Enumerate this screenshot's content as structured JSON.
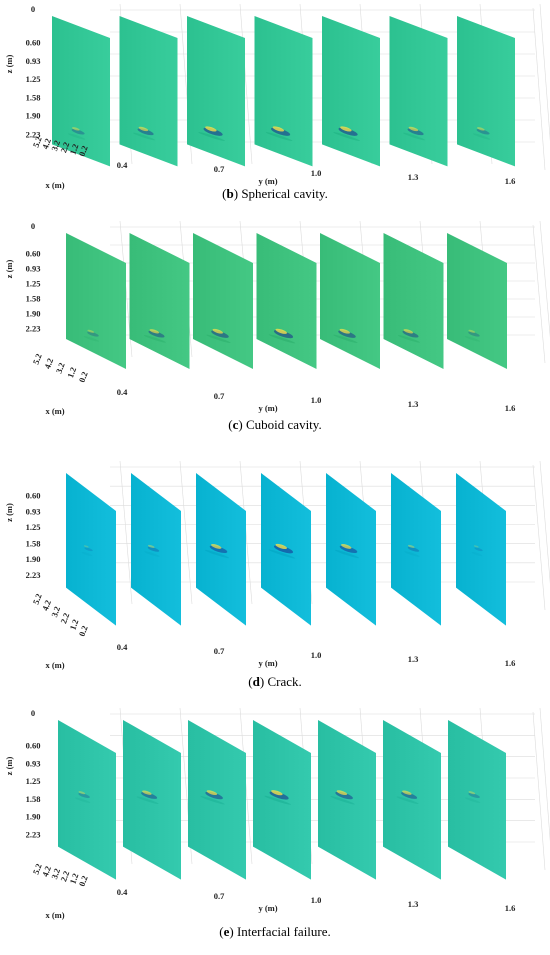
{
  "chart_data": [
    {
      "type": "heatmap",
      "caption_letter": "b",
      "caption_text": "Spherical cavity.",
      "xlabel": "x (m)",
      "ylabel": "y (m)",
      "zlabel": "z (m)",
      "x_ticks": [
        "5.2",
        "4.2",
        "3.2",
        "2.2",
        "1.2",
        "0.2"
      ],
      "y_ticks": [
        "0.4",
        "0.7",
        "1.0",
        "1.3",
        "1.6"
      ],
      "z_ticks": [
        "0",
        "0.60",
        "0.93",
        "1.25",
        "1.58",
        "1.90",
        "2.23"
      ],
      "slice_count": 7,
      "background_color": "#32c796",
      "anomaly_depth": 1.92,
      "anomaly_strength": [
        0.6,
        0.8,
        1.0,
        1.0,
        1.0,
        0.8,
        0.6
      ]
    },
    {
      "type": "heatmap",
      "caption_letter": "c",
      "caption_text": "Cuboid cavity.",
      "xlabel": "x (m)",
      "ylabel": "y (m)",
      "zlabel": "z (m)",
      "x_ticks": [
        "5.2",
        "4.2",
        "3.2",
        "1.2",
        "0.2"
      ],
      "y_ticks": [
        "0.4",
        "0.7",
        "1.0",
        "1.3",
        "1.6"
      ],
      "z_ticks": [
        "0",
        "0.60",
        "0.93",
        "1.25",
        "1.58",
        "1.90",
        "2.23"
      ],
      "slice_count": 7,
      "background_color": "#3ec27e",
      "anomaly_depth": 1.95,
      "anomaly_strength": [
        0.5,
        0.8,
        0.9,
        1.0,
        0.9,
        0.8,
        0.5
      ]
    },
    {
      "type": "heatmap",
      "caption_letter": "d",
      "caption_text": "Crack.",
      "xlabel": "x (m)",
      "ylabel": "y (m)",
      "zlabel": "z (m)",
      "x_ticks": [
        "5.2",
        "4.2",
        "3.2",
        "2.2",
        "1.2",
        "0.2"
      ],
      "y_ticks": [
        "0.4",
        "0.7",
        "1.0",
        "1.3",
        "1.6"
      ],
      "z_ticks": [
        "0.60",
        "0.93",
        "1.25",
        "1.58",
        "1.90",
        "2.23"
      ],
      "slice_count": 7,
      "background_color": "#0db8d6",
      "anomaly_depth": 1.25,
      "anomaly_strength": [
        0.3,
        0.5,
        0.9,
        1.0,
        0.9,
        0.5,
        0.3
      ]
    },
    {
      "type": "heatmap",
      "caption_letter": "e",
      "caption_text": "Interfacial failure.",
      "xlabel": "x (m)",
      "ylabel": "y (m)",
      "zlabel": "z (m)",
      "x_ticks": [
        "5.2",
        "4.2",
        "3.2",
        "2.2",
        "1.2",
        "0.2"
      ],
      "y_ticks": [
        "0.4",
        "0.7",
        "1.0",
        "1.3",
        "1.6"
      ],
      "z_ticks": [
        "0",
        "0.60",
        "0.93",
        "1.25",
        "1.58",
        "1.90",
        "2.23"
      ],
      "slice_count": 7,
      "background_color": "#2ec4a8",
      "anomaly_depth": 1.15,
      "anomaly_strength": [
        0.5,
        0.8,
        0.9,
        1.0,
        0.9,
        0.8,
        0.5
      ]
    }
  ]
}
